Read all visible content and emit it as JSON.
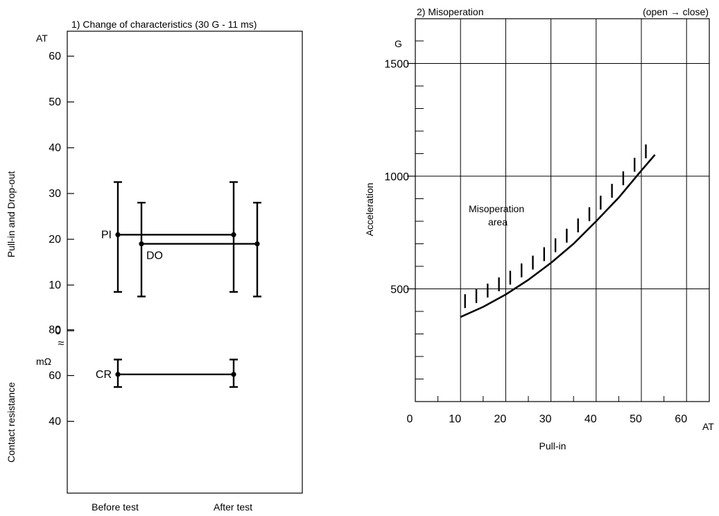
{
  "chart_data": [
    {
      "type": "line",
      "title": "1) Change of characteristics (30 G - 11 ms)",
      "categories": [
        "Before test",
        "After test"
      ],
      "upper": {
        "ylabel": "Pull-in and Drop-out",
        "unit": "AT",
        "ylim": [
          0,
          60
        ],
        "ticks": [
          0,
          10,
          20,
          30,
          40,
          50,
          60
        ],
        "series": [
          {
            "name": "PI",
            "mean": [
              21,
              21
            ],
            "max": [
              32.5,
              32.5
            ],
            "min": [
              8.5,
              8.5
            ]
          },
          {
            "name": "DO",
            "mean": [
              19,
              19
            ],
            "max": [
              28,
              28
            ],
            "min": [
              7.5,
              7.5
            ]
          }
        ]
      },
      "lower": {
        "ylabel": "Contact resistance",
        "unit": "mΩ",
        "ylim": [
          40,
          80
        ],
        "ticks": [
          40,
          60,
          80
        ],
        "series": [
          {
            "name": "CR",
            "mean": [
              60.5,
              60.5
            ],
            "max": [
              67,
              67
            ],
            "min": [
              55,
              55
            ]
          }
        ]
      },
      "break_symbol": "≈"
    },
    {
      "type": "line",
      "title": "2) Misoperation",
      "subtitle": "(open → close)",
      "xlabel": "Pull-in",
      "ylabel": "Acceleration",
      "xunit": "AT",
      "yunit": "G",
      "xlim": [
        0,
        65
      ],
      "ylim": [
        0,
        1650
      ],
      "xticks": [
        0,
        10,
        20,
        30,
        40,
        50,
        60
      ],
      "yticks_labeled": [
        500,
        1000,
        1500
      ],
      "grid": true,
      "annotation": "Misoperation area",
      "series": [
        {
          "x": [
            10,
            15,
            20,
            25,
            30,
            35,
            40,
            45,
            50,
            53
          ],
          "y": [
            375,
            420,
            475,
            540,
            615,
            700,
            800,
            905,
            1025,
            1095
          ]
        }
      ]
    }
  ]
}
